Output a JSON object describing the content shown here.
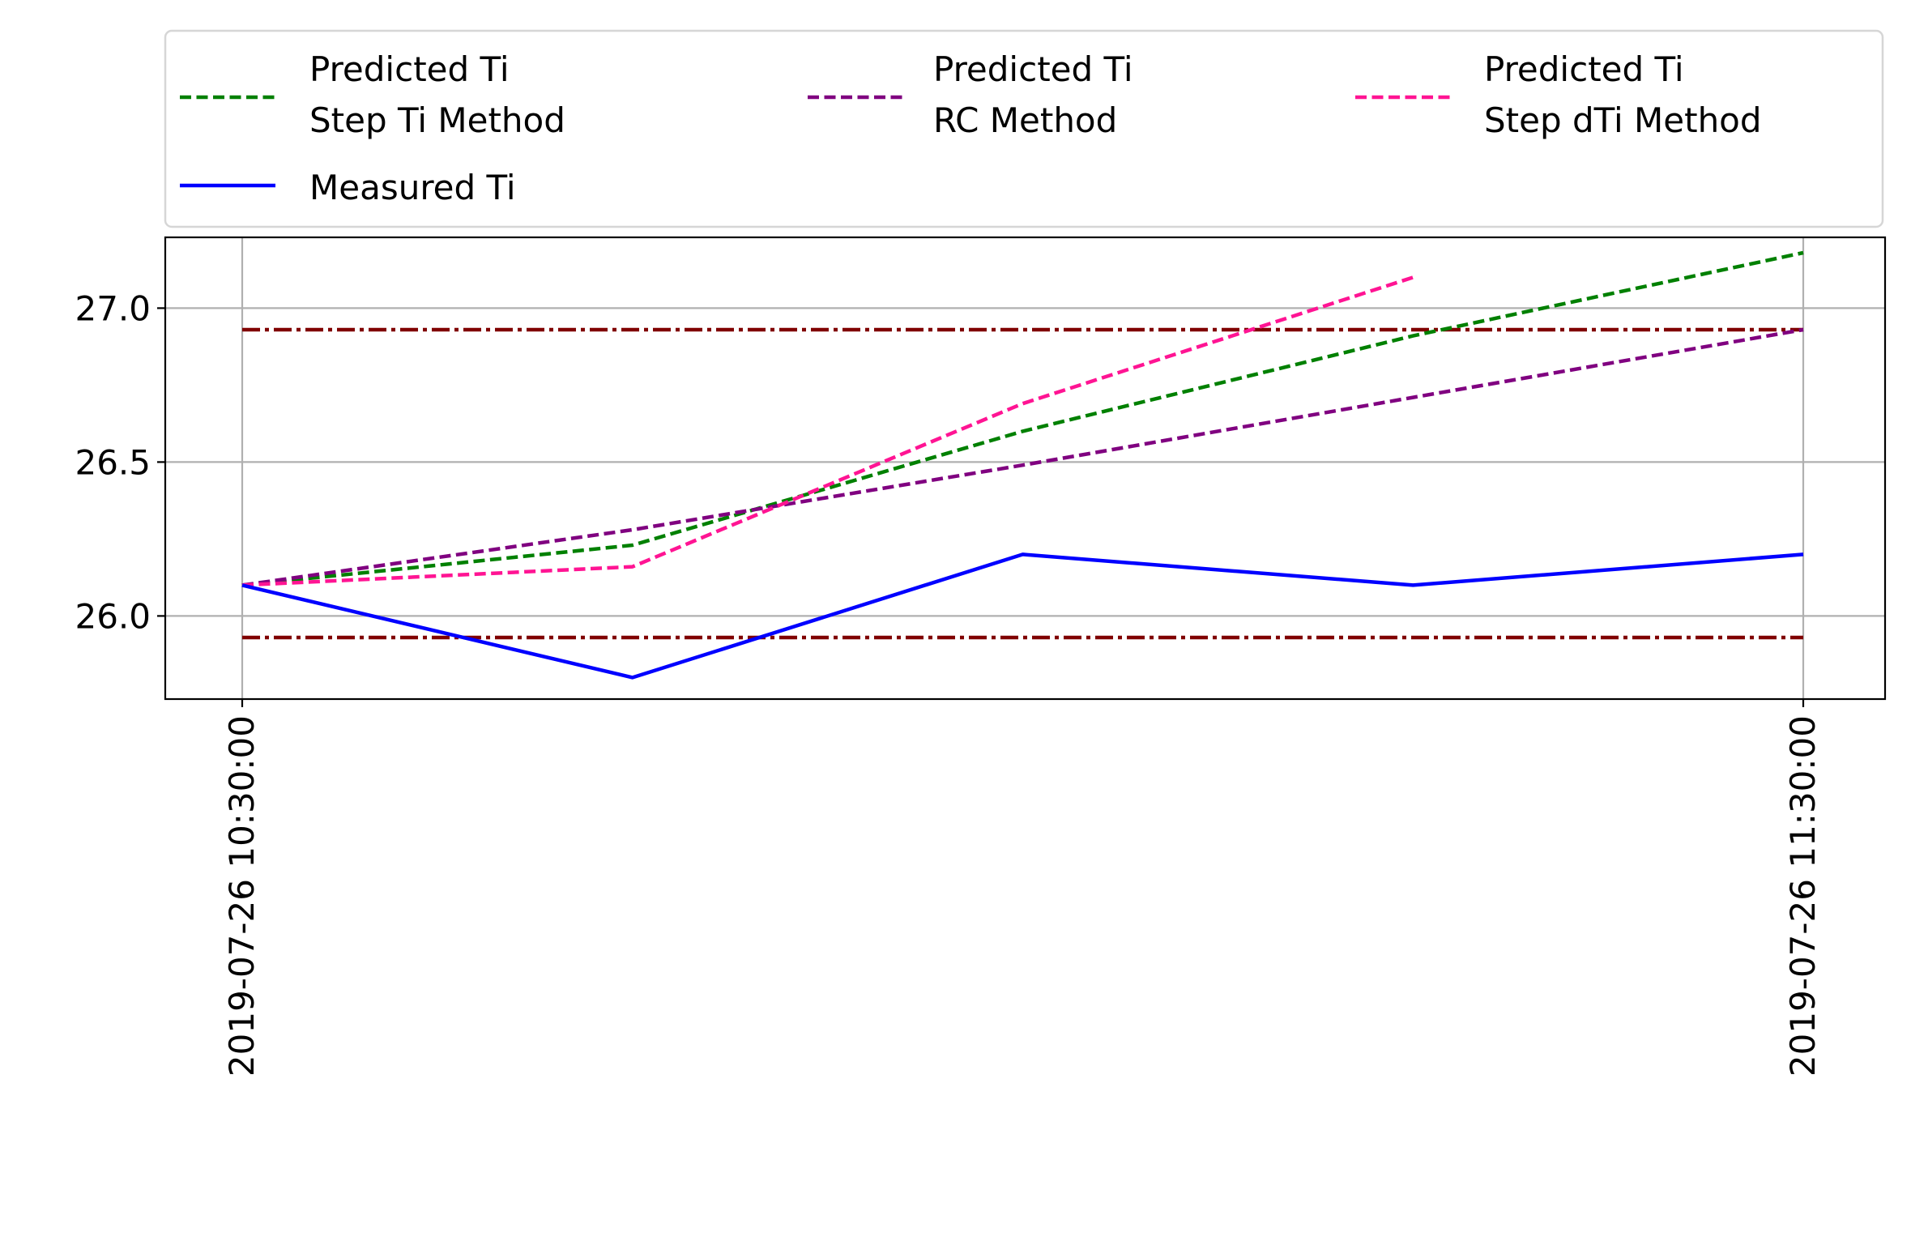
{
  "chart_data": {
    "type": "line",
    "title": "",
    "xlabel": "",
    "ylabel": "",
    "x": [
      "2019-07-26 10:30:00",
      "2019-07-26 10:45:00",
      "2019-07-26 11:00:00",
      "2019-07-26 11:15:00",
      "2019-07-26 11:30:00"
    ],
    "x_ticks": [
      "2019-07-26 10:30:00",
      "2019-07-26 11:30:00"
    ],
    "ylim": [
      25.73,
      27.23
    ],
    "y_ticks": [
      "26.0",
      "26.5",
      "27.0"
    ],
    "grid": true,
    "legend_position": "above plot",
    "series": [
      {
        "name": "Predicted Ti\n Step Ti Method",
        "color": "#008000",
        "style": "dashed",
        "values": [
          26.1,
          26.23,
          26.6,
          26.91,
          27.18
        ]
      },
      {
        "name": "Predicted Ti\n RC Method",
        "color": "#800080",
        "style": "dashed",
        "values": [
          26.1,
          26.28,
          26.49,
          26.71,
          26.93
        ]
      },
      {
        "name": "Predicted Ti\n Step dTi Method",
        "color": "#ff1493",
        "style": "dashed",
        "values": [
          26.1,
          26.16,
          26.69,
          27.1,
          null
        ]
      },
      {
        "name": "Measured Ti",
        "color": "#0000ff",
        "style": "solid",
        "values": [
          26.1,
          25.8,
          26.2,
          26.1,
          26.2
        ]
      }
    ],
    "reference_lines": [
      {
        "y": 26.93,
        "color": "#800000",
        "style": "dashdot"
      },
      {
        "y": 25.93,
        "color": "#800000",
        "style": "dashdot"
      }
    ],
    "legend_order": [
      0,
      1,
      2,
      3
    ]
  }
}
